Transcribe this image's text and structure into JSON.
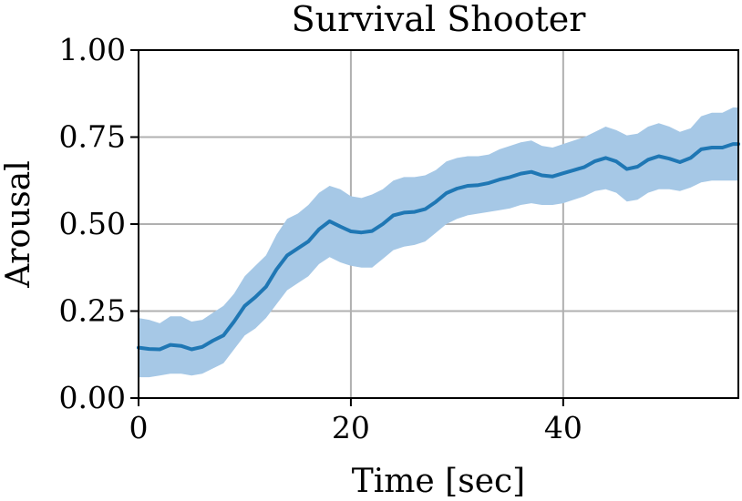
{
  "chart_data": {
    "type": "line",
    "title": "Survival Shooter",
    "xlabel": "Time [sec]",
    "ylabel": "Arousal",
    "xlim": [
      0,
      56.5
    ],
    "ylim": [
      0,
      1
    ],
    "xticks": [
      0,
      20,
      40
    ],
    "xtick_labels": [
      "0",
      "20",
      "40"
    ],
    "yticks": [
      0,
      0.25,
      0.5,
      0.75,
      1.0
    ],
    "ytick_labels": [
      "0.00",
      "0.25",
      "0.50",
      "0.75",
      "1.00"
    ],
    "grid": true,
    "legend": "none",
    "colors": {
      "line": "#1f77b4",
      "band": "#a6c8e6",
      "grid": "#b0b0b0"
    },
    "series": [
      {
        "x": [
          0,
          1,
          2,
          3,
          4,
          5,
          6,
          7,
          8,
          9,
          10,
          11,
          12,
          13,
          14,
          15,
          16,
          17,
          18,
          19,
          20,
          21,
          22,
          23,
          24,
          25,
          26,
          27,
          28,
          29,
          30,
          31,
          32,
          33,
          34,
          35,
          36,
          37,
          38,
          39,
          40,
          41,
          42,
          43,
          44,
          45,
          46,
          47,
          48,
          49,
          50,
          51,
          52,
          53,
          54,
          55,
          56,
          56.5
        ],
        "y": [
          0.145,
          0.141,
          0.14,
          0.153,
          0.15,
          0.14,
          0.147,
          0.165,
          0.18,
          0.22,
          0.265,
          0.29,
          0.32,
          0.37,
          0.41,
          0.43,
          0.45,
          0.485,
          0.508,
          0.493,
          0.479,
          0.476,
          0.48,
          0.5,
          0.525,
          0.533,
          0.535,
          0.543,
          0.564,
          0.589,
          0.602,
          0.61,
          0.612,
          0.618,
          0.628,
          0.635,
          0.645,
          0.65,
          0.64,
          0.637,
          0.646,
          0.655,
          0.664,
          0.681,
          0.69,
          0.68,
          0.658,
          0.665,
          0.685,
          0.695,
          0.688,
          0.678,
          0.69,
          0.715,
          0.72,
          0.72,
          0.73,
          0.73
        ],
        "lower": [
          0.06,
          0.06,
          0.065,
          0.07,
          0.07,
          0.065,
          0.07,
          0.085,
          0.1,
          0.14,
          0.18,
          0.2,
          0.23,
          0.27,
          0.31,
          0.33,
          0.35,
          0.385,
          0.405,
          0.39,
          0.38,
          0.375,
          0.375,
          0.4,
          0.425,
          0.435,
          0.44,
          0.45,
          0.475,
          0.5,
          0.515,
          0.525,
          0.53,
          0.535,
          0.54,
          0.545,
          0.555,
          0.56,
          0.555,
          0.555,
          0.56,
          0.57,
          0.58,
          0.595,
          0.6,
          0.59,
          0.565,
          0.57,
          0.59,
          0.6,
          0.6,
          0.595,
          0.605,
          0.62,
          0.625,
          0.625,
          0.625,
          0.625
        ],
        "upper": [
          0.23,
          0.225,
          0.215,
          0.235,
          0.235,
          0.22,
          0.225,
          0.245,
          0.265,
          0.3,
          0.35,
          0.38,
          0.41,
          0.47,
          0.515,
          0.53,
          0.555,
          0.59,
          0.61,
          0.6,
          0.58,
          0.575,
          0.585,
          0.6,
          0.625,
          0.635,
          0.635,
          0.64,
          0.655,
          0.68,
          0.69,
          0.695,
          0.695,
          0.7,
          0.715,
          0.725,
          0.735,
          0.74,
          0.725,
          0.72,
          0.73,
          0.74,
          0.75,
          0.765,
          0.78,
          0.77,
          0.755,
          0.76,
          0.78,
          0.79,
          0.78,
          0.765,
          0.775,
          0.81,
          0.82,
          0.82,
          0.835,
          0.835
        ]
      }
    ]
  }
}
